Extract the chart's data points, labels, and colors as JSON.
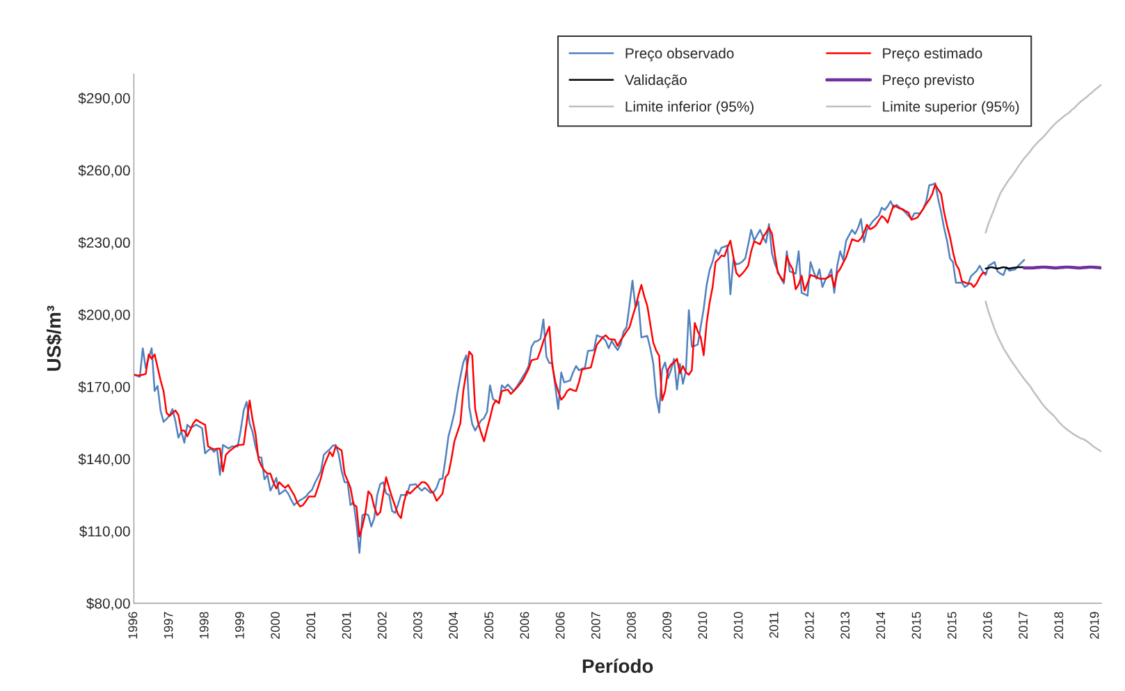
{
  "chart_data": {
    "type": "line",
    "xlabel": "Período",
    "ylabel": "US$/m³",
    "ylim": [
      80,
      300
    ],
    "yticks": [
      {
        "value": 80,
        "label": "$80,00"
      },
      {
        "value": 110,
        "label": "$110,00"
      },
      {
        "value": 140,
        "label": "$140,00"
      },
      {
        "value": 170,
        "label": "$170,00"
      },
      {
        "value": 200,
        "label": "$200,00"
      },
      {
        "value": 230,
        "label": "$230,00"
      },
      {
        "value": 260,
        "label": "$260,00"
      },
      {
        "value": 290,
        "label": "$290,00"
      }
    ],
    "categories": [
      "1996",
      null,
      null,
      null,
      null,
      null,
      null,
      null,
      null,
      null,
      null,
      null,
      "1997",
      null,
      null,
      null,
      null,
      null,
      null,
      null,
      null,
      null,
      null,
      null,
      "1998",
      null,
      null,
      null,
      null,
      null,
      null,
      null,
      null,
      null,
      null,
      null,
      "1999",
      null,
      null,
      null,
      null,
      null,
      null,
      null,
      null,
      null,
      null,
      null,
      "2000",
      null,
      null,
      null,
      null,
      null,
      null,
      null,
      null,
      null,
      null,
      null,
      "2001",
      null,
      null,
      null,
      null,
      null,
      null,
      null,
      null,
      null,
      null,
      null,
      "2001",
      null,
      null,
      null,
      null,
      null,
      null,
      null,
      null,
      null,
      null,
      null,
      "2002",
      null,
      null,
      null,
      null,
      null,
      null,
      null,
      null,
      null,
      null,
      null,
      "2003",
      null,
      null,
      null,
      null,
      null,
      null,
      null,
      null,
      null,
      null,
      null,
      "2004",
      null,
      null,
      null,
      null,
      null,
      null,
      null,
      null,
      null,
      null,
      null,
      "2005",
      null,
      null,
      null,
      null,
      null,
      null,
      null,
      null,
      null,
      null,
      null,
      "2006",
      null,
      null,
      null,
      null,
      null,
      null,
      null,
      null,
      null,
      null,
      null,
      "2006",
      null,
      null,
      null,
      null,
      null,
      null,
      null,
      null,
      null,
      null,
      null,
      "2007",
      null,
      null,
      null,
      null,
      null,
      null,
      null,
      null,
      null,
      null,
      null,
      "2008",
      null,
      null,
      null,
      null,
      null,
      null,
      null,
      null,
      null,
      null,
      null,
      "2009",
      null,
      null,
      null,
      null,
      null,
      null,
      null,
      null,
      null,
      null,
      null,
      "2010",
      null,
      null,
      null,
      null,
      null,
      null,
      null,
      null,
      null,
      null,
      null,
      "2010",
      null,
      null,
      null,
      null,
      null,
      null,
      null,
      null,
      null,
      null,
      null,
      "2011",
      null,
      null,
      null,
      null,
      null,
      null,
      null,
      null,
      null,
      null,
      null,
      "2012",
      null,
      null,
      null,
      null,
      null,
      null,
      null,
      null,
      null,
      null,
      null,
      "2013",
      null,
      null,
      null,
      null,
      null,
      null,
      null,
      null,
      null,
      null,
      null,
      "2014",
      null,
      null,
      null,
      null,
      null,
      null,
      null,
      null,
      null,
      null,
      null,
      "2015",
      null,
      null,
      null,
      null,
      null,
      null,
      null,
      null,
      null,
      null,
      null,
      "2015",
      null,
      null,
      null,
      null,
      null,
      null,
      null,
      null,
      null,
      null,
      null,
      "2016",
      null,
      null,
      null,
      null,
      null,
      null,
      null,
      null,
      null,
      null,
      null,
      "2017",
      null,
      null,
      null,
      null,
      null,
      null,
      null,
      null,
      null,
      null,
      null,
      "2018",
      null,
      null,
      null,
      null,
      null,
      null,
      null,
      null,
      null,
      null,
      null,
      "2019",
      null,
      null
    ],
    "grid": false,
    "legend": "top right",
    "marker": "none",
    "line_style": "solid",
    "series": [
      {
        "name": "Preço observado",
        "color": "#4f81bd",
        "values": [
          175.0,
          174.5,
          174.1,
          186.0,
          177.7,
          182,
          186.0,
          168.2,
          170.3,
          160,
          155.4,
          156.6,
          158,
          160.7,
          155.7,
          148.8,
          151.5,
          146.7,
          154.2,
          153.0,
          153.5,
          154.2,
          153.5,
          152.7,
          142.3,
          143.5,
          144.3,
          142.9,
          144.3,
          133.3,
          145.8,
          145.0,
          144.3,
          145.2,
          145.2,
          145.2,
          152,
          160.1,
          163.7,
          154.8,
          151.2,
          145,
          140.8,
          140.5,
          131.5,
          133.3,
          126.8,
          129.2,
          132.1,
          125.3,
          126.2,
          127.1,
          125.6,
          123,
          120.8,
          122.0,
          122.8,
          123.5,
          124.4,
          126,
          127.1,
          130,
          132.4,
          134.8,
          141.7,
          142.9,
          144,
          145.5,
          145.8,
          142.0,
          135,
          130.3,
          130.3,
          120.8,
          122.0,
          113.1,
          100.9,
          116.6,
          117.2,
          116.6,
          111.9,
          115.4,
          125,
          129.5,
          130.3,
          125.6,
          125.0,
          118.4,
          117.5,
          121,
          125.0,
          125.0,
          125.0,
          129.2,
          129.3,
          129.5,
          128,
          126.8,
          128.0,
          127,
          125.9,
          126.2,
          128,
          131.5,
          131.8,
          140,
          149.4,
          154,
          159.2,
          167.3,
          174,
          180.1,
          183.1,
          161.6,
          154.5,
          151.8,
          154,
          156,
          157,
          159.5,
          170.6,
          164.9,
          164,
          163.4,
          170.6,
          169.4,
          170.9,
          169.5,
          168.2,
          170,
          172,
          174.1,
          176,
          178.6,
          186.6,
          188.7,
          189,
          189.9,
          198.0,
          182.5,
          179.8,
          179.8,
          170,
          160.7,
          175.9,
          171.8,
          172.2,
          172.6,
          176,
          178.6,
          176.8,
          177.5,
          178.0,
          184.9,
          185,
          185.2,
          191.4,
          190.8,
          190.5,
          189.0,
          186.0,
          189.0,
          187,
          185.2,
          187.5,
          192.9,
          194.7,
          203.9,
          214.1,
          203.0,
          205.4,
          190.5,
          190.8,
          191.1,
          186,
          179.8,
          166.1,
          159.2,
          177.1,
          180.1,
          173.5,
          177,
          181.6,
          168.8,
          179.5,
          171.2,
          176.5,
          201.8,
          186.6,
          187,
          187.5,
          195,
          202.4,
          212.3,
          218.5,
          222,
          226.9,
          224.8,
          227.8,
          228.2,
          228.7,
          208.4,
          222.7,
          220.9,
          221.2,
          222,
          223.3,
          229,
          235.2,
          230.7,
          233,
          235.2,
          232.2,
          229.8,
          237.6,
          225.4,
          221,
          217.9,
          215,
          212.9,
          226.3,
          217.9,
          217.5,
          217.0,
          226.3,
          209.0,
          208.5,
          207.8,
          221.8,
          218,
          214.9,
          218.8,
          211.4,
          214.4,
          216,
          218.8,
          209.0,
          220.3,
          226.3,
          222.7,
          230.7,
          233,
          235.2,
          233.5,
          236,
          239.7,
          230.1,
          235.2,
          237,
          238.8,
          240,
          241.2,
          244.4,
          243.5,
          245,
          247.1,
          244.4,
          245.6,
          244.5,
          243.5,
          242.4,
          241,
          239.7,
          242.1,
          242.1,
          242.1,
          244,
          247.1,
          253.7,
          254,
          254.6,
          248,
          242.6,
          236,
          230.7,
          223.3,
          221.8,
          213.2,
          213.2,
          213.2,
          211.4,
          212.3,
          215.8,
          217.0,
          218.2,
          220.3,
          218,
          216.4,
          220.3,
          221,
          221.8,
          217.9,
          217,
          216.4,
          219.7,
          218.2,
          218.5,
          218.8,
          220.3,
          221.5,
          222.7,
          null,
          null,
          null,
          null,
          null,
          null,
          null,
          null,
          null,
          null,
          null,
          null,
          null,
          null,
          null,
          null,
          null,
          null,
          null,
          null,
          null,
          null,
          null,
          null,
          null,
          null
        ]
      },
      {
        "name": "Preço estimado",
        "color": "#ff0000",
        "values": [
          175.0,
          174.8,
          174.7,
          175,
          175.3,
          183.4,
          181.6,
          183.4,
          178,
          172.6,
          168.2,
          159.2,
          157.8,
          159,
          160.1,
          158.3,
          151.8,
          151.8,
          149.4,
          152,
          154.8,
          156.3,
          155.5,
          154.8,
          154.2,
          145.2,
          144.5,
          144.0,
          144.2,
          144.3,
          134.8,
          141.7,
          143,
          144,
          145,
          145.8,
          145.8,
          146,
          155,
          164.3,
          156.3,
          150.3,
          139.9,
          137,
          135.1,
          133.9,
          133.9,
          130.3,
          127.7,
          130.3,
          129,
          128.0,
          129.2,
          127,
          125.0,
          122,
          120.2,
          120.8,
          122.5,
          124.4,
          124.4,
          124.4,
          128.0,
          132,
          136.9,
          140,
          142.9,
          141.1,
          145.2,
          144.3,
          143.5,
          133.9,
          131,
          128.0,
          121.1,
          120.2,
          107.7,
          112,
          117.5,
          126.5,
          125.0,
          120,
          116.6,
          117.8,
          125,
          132.4,
          128.0,
          124,
          120.5,
          117,
          115.4,
          122,
          126.5,
          125.6,
          126.8,
          128.0,
          129,
          130.3,
          130.3,
          129.2,
          127,
          125.6,
          122.6,
          124,
          125.6,
          132.4,
          133.9,
          140,
          147.3,
          151,
          154.8,
          168.2,
          176,
          184.6,
          183.1,
          160.7,
          155,
          150.9,
          147.3,
          152.4,
          157,
          162.2,
          164.3,
          163.1,
          168.2,
          168.5,
          168.8,
          167.0,
          168.2,
          169.5,
          171,
          172.6,
          175,
          177.4,
          181.0,
          181.3,
          181.6,
          185,
          189.0,
          192,
          195.0,
          178.6,
          172,
          168,
          164.6,
          166,
          168.2,
          169.1,
          168.5,
          168.2,
          172,
          177.1,
          177.5,
          177.7,
          178.0,
          183,
          187.5,
          189,
          190.5,
          191.4,
          190,
          189.6,
          189.6,
          186.9,
          189.3,
          191,
          193,
          194.7,
          199,
          203.0,
          208,
          212.3,
          207.5,
          203.6,
          196,
          188.4,
          185,
          182.8,
          164.3,
          168.2,
          177.1,
          179.2,
          180,
          181.6,
          175.6,
          178.6,
          176,
          175.0,
          176.8,
          196.5,
          193,
          190.5,
          183.1,
          196.5,
          205,
          211.4,
          221.8,
          223,
          224.5,
          224.2,
          227.8,
          230.7,
          224,
          217.3,
          215.8,
          217,
          218.5,
          220.3,
          226.3,
          230.4,
          229.8,
          229.2,
          232.2,
          234,
          236.1,
          233.7,
          224.8,
          217.3,
          215.5,
          213.8,
          224.2,
          221,
          218.8,
          210.5,
          212.5,
          216.1,
          209.9,
          213,
          216.4,
          216,
          215.5,
          214.9,
          214.9,
          214.9,
          215.5,
          216.4,
          211.4,
          217.3,
          219,
          221.5,
          223.9,
          227.5,
          231.3,
          230.8,
          230.4,
          231.6,
          234,
          237.3,
          235.5,
          236,
          237.0,
          239,
          240.9,
          240,
          238.2,
          242,
          245.3,
          244.8,
          244.1,
          243.8,
          243,
          242.4,
          239.4,
          239.8,
          240.3,
          242.1,
          244,
          246,
          247.7,
          250,
          254.0,
          252,
          250.1,
          242.6,
          237,
          232.2,
          226,
          220.9,
          218.8,
          213.8,
          213.3,
          212.9,
          212.9,
          211.4,
          213,
          215.5,
          217.3,
          217.3,
          null,
          null,
          null,
          null,
          null,
          null,
          null,
          null,
          null,
          null,
          null,
          null,
          null,
          null,
          null,
          null,
          null,
          null,
          null,
          null,
          null,
          null,
          null,
          null,
          null,
          null,
          null,
          null,
          null,
          null,
          null,
          null,
          null,
          null,
          null,
          null,
          null,
          null,
          null
        ]
      },
      {
        "name": "Validação",
        "color": "#000000",
        "values": [
          null,
          null,
          null,
          null,
          null,
          null,
          null,
          null,
          null,
          null,
          null,
          null,
          null,
          null,
          null,
          null,
          null,
          null,
          null,
          null,
          null,
          null,
          null,
          null,
          null,
          null,
          null,
          null,
          null,
          null,
          null,
          null,
          null,
          null,
          null,
          null,
          null,
          null,
          null,
          null,
          null,
          null,
          null,
          null,
          null,
          null,
          null,
          null,
          null,
          null,
          null,
          null,
          null,
          null,
          null,
          null,
          null,
          null,
          null,
          null,
          null,
          null,
          null,
          null,
          null,
          null,
          null,
          null,
          null,
          null,
          null,
          null,
          null,
          null,
          null,
          null,
          null,
          null,
          null,
          null,
          null,
          null,
          null,
          null,
          null,
          null,
          null,
          null,
          null,
          null,
          null,
          null,
          null,
          null,
          null,
          null,
          null,
          null,
          null,
          null,
          null,
          null,
          null,
          null,
          null,
          null,
          null,
          null,
          null,
          null,
          null,
          null,
          null,
          null,
          null,
          null,
          null,
          null,
          null,
          null,
          null,
          null,
          null,
          null,
          null,
          null,
          null,
          null,
          null,
          null,
          null,
          null,
          null,
          null,
          null,
          null,
          null,
          null,
          null,
          null,
          null,
          null,
          null,
          null,
          null,
          null,
          null,
          null,
          null,
          null,
          null,
          null,
          null,
          null,
          null,
          null,
          null,
          null,
          null,
          null,
          null,
          null,
          null,
          null,
          null,
          null,
          null,
          null,
          null,
          null,
          null,
          null,
          null,
          null,
          null,
          null,
          null,
          null,
          null,
          null,
          null,
          null,
          null,
          null,
          null,
          null,
          null,
          null,
          null,
          null,
          null,
          null,
          null,
          null,
          null,
          null,
          null,
          null,
          null,
          null,
          null,
          null,
          null,
          null,
          null,
          null,
          null,
          null,
          null,
          null,
          null,
          null,
          null,
          null,
          null,
          null,
          null,
          null,
          null,
          null,
          null,
          null,
          null,
          null,
          null,
          null,
          null,
          null,
          null,
          null,
          null,
          null,
          null,
          null,
          null,
          null,
          null,
          null,
          null,
          null,
          null,
          null,
          null,
          null,
          null,
          null,
          null,
          null,
          null,
          null,
          null,
          null,
          null,
          null,
          null,
          null,
          null,
          null,
          null,
          null,
          null,
          null,
          null,
          null,
          null,
          null,
          null,
          null,
          null,
          null,
          null,
          null,
          null,
          null,
          null,
          null,
          null,
          null,
          null,
          null,
          null,
          null,
          null,
          null,
          null,
          null,
          null,
          219.1,
          219.4,
          219.7,
          219.4,
          219.1,
          219.4,
          219.7,
          219.4,
          219.1,
          219.4,
          219.5,
          219.7,
          219.7,
          219.7,
          null,
          null,
          null,
          null,
          null,
          null,
          null,
          null,
          null,
          null,
          null,
          null,
          null,
          null,
          null,
          null,
          null,
          null,
          null,
          null,
          null,
          null,
          null,
          null,
          null,
          null
        ]
      },
      {
        "name": "Preço previsto",
        "color": "#7030a0",
        "values": [
          null,
          null,
          null,
          null,
          null,
          null,
          null,
          null,
          null,
          null,
          null,
          null,
          null,
          null,
          null,
          null,
          null,
          null,
          null,
          null,
          null,
          null,
          null,
          null,
          null,
          null,
          null,
          null,
          null,
          null,
          null,
          null,
          null,
          null,
          null,
          null,
          null,
          null,
          null,
          null,
          null,
          null,
          null,
          null,
          null,
          null,
          null,
          null,
          null,
          null,
          null,
          null,
          null,
          null,
          null,
          null,
          null,
          null,
          null,
          null,
          null,
          null,
          null,
          null,
          null,
          null,
          null,
          null,
          null,
          null,
          null,
          null,
          null,
          null,
          null,
          null,
          null,
          null,
          null,
          null,
          null,
          null,
          null,
          null,
          null,
          null,
          null,
          null,
          null,
          null,
          null,
          null,
          null,
          null,
          null,
          null,
          null,
          null,
          null,
          null,
          null,
          null,
          null,
          null,
          null,
          null,
          null,
          null,
          null,
          null,
          null,
          null,
          null,
          null,
          null,
          null,
          null,
          null,
          null,
          null,
          null,
          null,
          null,
          null,
          null,
          null,
          null,
          null,
          null,
          null,
          null,
          null,
          null,
          null,
          null,
          null,
          null,
          null,
          null,
          null,
          null,
          null,
          null,
          null,
          null,
          null,
          null,
          null,
          null,
          null,
          null,
          null,
          null,
          null,
          null,
          null,
          null,
          null,
          null,
          null,
          null,
          null,
          null,
          null,
          null,
          null,
          null,
          null,
          null,
          null,
          null,
          null,
          null,
          null,
          null,
          null,
          null,
          null,
          null,
          null,
          null,
          null,
          null,
          null,
          null,
          null,
          null,
          null,
          null,
          null,
          null,
          null,
          null,
          null,
          null,
          null,
          null,
          null,
          null,
          null,
          null,
          null,
          null,
          null,
          null,
          null,
          null,
          null,
          null,
          null,
          null,
          null,
          null,
          null,
          null,
          null,
          null,
          null,
          null,
          null,
          null,
          null,
          null,
          null,
          null,
          null,
          null,
          null,
          null,
          null,
          null,
          null,
          null,
          null,
          null,
          null,
          null,
          null,
          null,
          null,
          null,
          null,
          null,
          null,
          null,
          null,
          null,
          null,
          null,
          null,
          null,
          null,
          null,
          null,
          null,
          null,
          null,
          null,
          null,
          null,
          null,
          null,
          null,
          null,
          null,
          null,
          null,
          null,
          null,
          null,
          null,
          null,
          null,
          null,
          null,
          null,
          null,
          null,
          null,
          null,
          null,
          null,
          null,
          null,
          null,
          null,
          null,
          null,
          null,
          null,
          null,
          null,
          null,
          null,
          null,
          null,
          null,
          null,
          null,
          null,
          219.4,
          219.4,
          219.4,
          219.4,
          219.5,
          219.6,
          219.7,
          219.7,
          219.6,
          219.5,
          219.4,
          219.4,
          219.5,
          219.6,
          219.7,
          219.7,
          219.6,
          219.5,
          219.4,
          219.4,
          219.5,
          219.6,
          219.7,
          219.7,
          219.6,
          219.5,
          219.4
        ]
      },
      {
        "name": "Limite inferior (95%)",
        "color": "#bfbfbf",
        "values": [
          null,
          null,
          null,
          null,
          null,
          null,
          null,
          null,
          null,
          null,
          null,
          null,
          null,
          null,
          null,
          null,
          null,
          null,
          null,
          null,
          null,
          null,
          null,
          null,
          null,
          null,
          null,
          null,
          null,
          null,
          null,
          null,
          null,
          null,
          null,
          null,
          null,
          null,
          null,
          null,
          null,
          null,
          null,
          null,
          null,
          null,
          null,
          null,
          null,
          null,
          null,
          null,
          null,
          null,
          null,
          null,
          null,
          null,
          null,
          null,
          null,
          null,
          null,
          null,
          null,
          null,
          null,
          null,
          null,
          null,
          null,
          null,
          null,
          null,
          null,
          null,
          null,
          null,
          null,
          null,
          null,
          null,
          null,
          null,
          null,
          null,
          null,
          null,
          null,
          null,
          null,
          null,
          null,
          null,
          null,
          null,
          null,
          null,
          null,
          null,
          null,
          null,
          null,
          null,
          null,
          null,
          null,
          null,
          null,
          null,
          null,
          null,
          null,
          null,
          null,
          null,
          null,
          null,
          null,
          null,
          null,
          null,
          null,
          null,
          null,
          null,
          null,
          null,
          null,
          null,
          null,
          null,
          null,
          null,
          null,
          null,
          null,
          null,
          null,
          null,
          null,
          null,
          null,
          null,
          null,
          null,
          null,
          null,
          null,
          null,
          null,
          null,
          null,
          null,
          null,
          null,
          null,
          null,
          null,
          null,
          null,
          null,
          null,
          null,
          null,
          null,
          null,
          null,
          null,
          null,
          null,
          null,
          null,
          null,
          null,
          null,
          null,
          null,
          null,
          null,
          null,
          null,
          null,
          null,
          null,
          null,
          null,
          null,
          null,
          null,
          null,
          null,
          null,
          null,
          null,
          null,
          null,
          null,
          null,
          null,
          null,
          null,
          null,
          null,
          null,
          null,
          null,
          null,
          null,
          null,
          null,
          null,
          null,
          null,
          null,
          null,
          null,
          null,
          null,
          null,
          null,
          null,
          null,
          null,
          null,
          null,
          null,
          null,
          null,
          null,
          null,
          null,
          null,
          null,
          null,
          null,
          null,
          null,
          null,
          null,
          null,
          null,
          null,
          null,
          null,
          null,
          null,
          null,
          null,
          null,
          null,
          null,
          null,
          null,
          null,
          null,
          null,
          null,
          null,
          null,
          null,
          null,
          null,
          null,
          null,
          null,
          null,
          null,
          null,
          null,
          null,
          null,
          null,
          null,
          null,
          null,
          null,
          null,
          null,
          null,
          null,
          null,
          null,
          null,
          null,
          null,
          null,
          205.4,
          201,
          197.5,
          194,
          191,
          188.5,
          186,
          184,
          182,
          180.1,
          178.4,
          176.6,
          174.9,
          173.2,
          171.7,
          170.2,
          168.2,
          166.5,
          164.8,
          163,
          161.5,
          160.2,
          159,
          157.9,
          156.4,
          154.9,
          153.7,
          152.6,
          151.7,
          150.8,
          150,
          149.3,
          148.5,
          148.2,
          147.4,
          146.5,
          145.5,
          144.6,
          143.8,
          143.0
        ]
      },
      {
        "name": "Limite superior (95%)",
        "color": "#bfbfbf",
        "values": [
          null,
          null,
          null,
          null,
          null,
          null,
          null,
          null,
          null,
          null,
          null,
          null,
          null,
          null,
          null,
          null,
          null,
          null,
          null,
          null,
          null,
          null,
          null,
          null,
          null,
          null,
          null,
          null,
          null,
          null,
          null,
          null,
          null,
          null,
          null,
          null,
          null,
          null,
          null,
          null,
          null,
          null,
          null,
          null,
          null,
          null,
          null,
          null,
          null,
          null,
          null,
          null,
          null,
          null,
          null,
          null,
          null,
          null,
          null,
          null,
          null,
          null,
          null,
          null,
          null,
          null,
          null,
          null,
          null,
          null,
          null,
          null,
          null,
          null,
          null,
          null,
          null,
          null,
          null,
          null,
          null,
          null,
          null,
          null,
          null,
          null,
          null,
          null,
          null,
          null,
          null,
          null,
          null,
          null,
          null,
          null,
          null,
          null,
          null,
          null,
          null,
          null,
          null,
          null,
          null,
          null,
          null,
          null,
          null,
          null,
          null,
          null,
          null,
          null,
          null,
          null,
          null,
          null,
          null,
          null,
          null,
          null,
          null,
          null,
          null,
          null,
          null,
          null,
          null,
          null,
          null,
          null,
          null,
          null,
          null,
          null,
          null,
          null,
          null,
          null,
          null,
          null,
          null,
          null,
          null,
          null,
          null,
          null,
          null,
          null,
          null,
          null,
          null,
          null,
          null,
          null,
          null,
          null,
          null,
          null,
          null,
          null,
          null,
          null,
          null,
          null,
          null,
          null,
          null,
          null,
          null,
          null,
          null,
          null,
          null,
          null,
          null,
          null,
          null,
          null,
          null,
          null,
          null,
          null,
          null,
          null,
          null,
          null,
          null,
          null,
          null,
          null,
          null,
          null,
          null,
          null,
          null,
          null,
          null,
          null,
          null,
          null,
          null,
          null,
          null,
          null,
          null,
          null,
          null,
          null,
          null,
          null,
          null,
          null,
          null,
          null,
          null,
          null,
          null,
          null,
          null,
          null,
          null,
          null,
          null,
          null,
          null,
          null,
          null,
          null,
          null,
          null,
          null,
          null,
          null,
          null,
          null,
          null,
          null,
          null,
          null,
          null,
          null,
          null,
          null,
          null,
          null,
          null,
          null,
          null,
          null,
          null,
          null,
          null,
          null,
          null,
          null,
          null,
          null,
          null,
          null,
          null,
          null,
          null,
          null,
          null,
          null,
          null,
          null,
          null,
          null,
          null,
          null,
          null,
          null,
          null,
          null,
          null,
          null,
          null,
          null,
          null,
          null,
          null,
          null,
          null,
          null,
          234.0,
          238,
          241,
          244.1,
          247.5,
          250.5,
          252.5,
          254.5,
          256.3,
          257.8,
          259.6,
          261.5,
          263.3,
          264.9,
          266.3,
          267.8,
          269.5,
          270.8,
          272.1,
          273.3,
          274.6,
          276,
          277.5,
          278.8,
          280,
          281,
          282,
          283,
          283.8,
          285,
          286,
          287.3,
          288.5,
          289.4,
          290.4,
          291.5,
          292.5,
          293.6,
          294.6,
          295.5
        ]
      }
    ]
  }
}
